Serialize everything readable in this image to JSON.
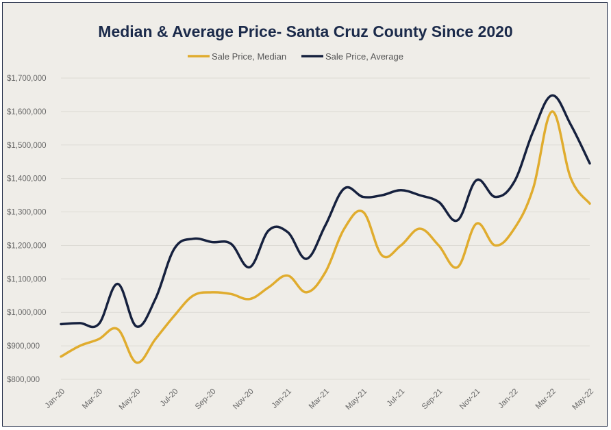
{
  "chart_data": {
    "type": "line",
    "title": "Median & Average Price- Santa Cruz County Since 2020",
    "xlabel": "",
    "ylabel": "",
    "ylim": [
      800000,
      1700000
    ],
    "yticks": [
      800000,
      900000,
      1000000,
      1100000,
      1200000,
      1300000,
      1400000,
      1500000,
      1600000,
      1700000
    ],
    "ytick_labels": [
      "$800,000",
      "$900,000",
      "$1,000,000",
      "$1,100,000",
      "$1,200,000",
      "$1,300,000",
      "$1,400,000",
      "$1,500,000",
      "$1,600,000",
      "$1,700,000"
    ],
    "categories": [
      "Jan-20",
      "Feb-20",
      "Mar-20",
      "Apr-20",
      "May-20",
      "Jun-20",
      "Jul-20",
      "Aug-20",
      "Sep-20",
      "Oct-20",
      "Nov-20",
      "Dec-20",
      "Jan-21",
      "Feb-21",
      "Mar-21",
      "Apr-21",
      "May-21",
      "Jun-21",
      "Jul-21",
      "Aug-21",
      "Sep-21",
      "Oct-21",
      "Nov-21",
      "Dec-21",
      "Jan-22",
      "Feb-22",
      "Mar-22",
      "Apr-22",
      "May-22"
    ],
    "xtick_labels": [
      "Jan-20",
      "Mar-20",
      "May-20",
      "Jul-20",
      "Sep-20",
      "Nov-20",
      "Jan-21",
      "Mar-21",
      "May-21",
      "Jul-21",
      "Sep-21",
      "Nov-21",
      "Jan-22",
      "Mar-22",
      "May-22"
    ],
    "grid": true,
    "legend_position": "top",
    "series": [
      {
        "name": "Sale Price, Median",
        "color": "#e0ac2e",
        "values": [
          868000,
          900000,
          920000,
          950000,
          850000,
          920000,
          990000,
          1050000,
          1060000,
          1055000,
          1040000,
          1075000,
          1110000,
          1060000,
          1120000,
          1250000,
          1300000,
          1170000,
          1200000,
          1250000,
          1200000,
          1135000,
          1265000,
          1200000,
          1250000,
          1370000,
          1600000,
          1400000,
          1325000
        ]
      },
      {
        "name": "Sale Price, Average",
        "color": "#16213e",
        "values": [
          965000,
          968000,
          965000,
          1085000,
          958000,
          1040000,
          1190000,
          1220000,
          1210000,
          1205000,
          1135000,
          1245000,
          1240000,
          1160000,
          1260000,
          1370000,
          1345000,
          1350000,
          1365000,
          1350000,
          1330000,
          1275000,
          1395000,
          1345000,
          1390000,
          1540000,
          1648000,
          1560000,
          1445000
        ]
      }
    ]
  }
}
